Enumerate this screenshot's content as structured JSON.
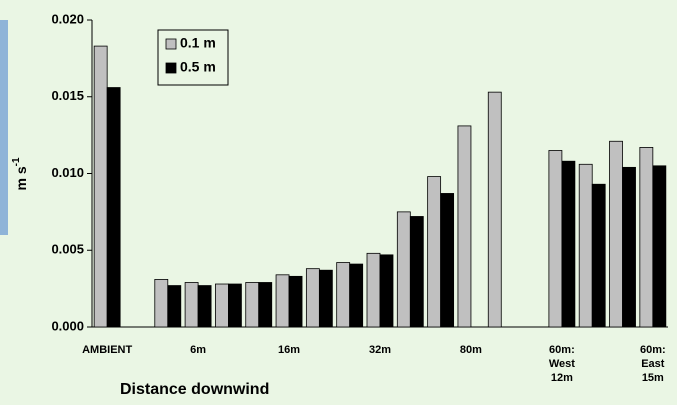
{
  "chart_data": {
    "type": "bar",
    "x_label": "Distance downwind",
    "y_label": "m s",
    "y_label_sup": "-1",
    "categories": [
      "AMBIENT",
      null,
      null,
      "6m",
      null,
      null,
      "16m",
      null,
      null,
      "32m",
      null,
      null,
      "80m",
      null,
      null,
      "60m:\nWest\n12m",
      null,
      null,
      "60m:\nEast\n15m"
    ],
    "series": [
      {
        "name": "0.1 m",
        "color": "#c0c0c0",
        "values": [
          0.0183,
          null,
          0.0031,
          0.0029,
          0.0028,
          0.0029,
          0.0034,
          0.0038,
          0.0042,
          0.0048,
          0.0075,
          0.0098,
          0.0131,
          0.0153,
          null,
          0.0115,
          0.0106,
          0.0121,
          0.0117
        ]
      },
      {
        "name": "0.5 m",
        "color": "#000000",
        "values": [
          0.0156,
          null,
          0.0027,
          0.0027,
          0.0028,
          0.0029,
          0.0033,
          0.0037,
          0.0041,
          0.0047,
          0.0072,
          0.0087,
          null,
          null,
          null,
          0.0108,
          0.0093,
          0.0104,
          0.0105
        ]
      }
    ],
    "ylim": [
      0,
      0.02
    ],
    "yticks": [
      {
        "value": 0,
        "label": "0.000"
      },
      {
        "value": 0.005,
        "label": "0.005"
      },
      {
        "value": 0.01,
        "label": "0.010"
      },
      {
        "value": 0.015,
        "label": "0.015"
      },
      {
        "value": 0.02,
        "label": "0.020"
      }
    ],
    "legend": "upper-left"
  }
}
